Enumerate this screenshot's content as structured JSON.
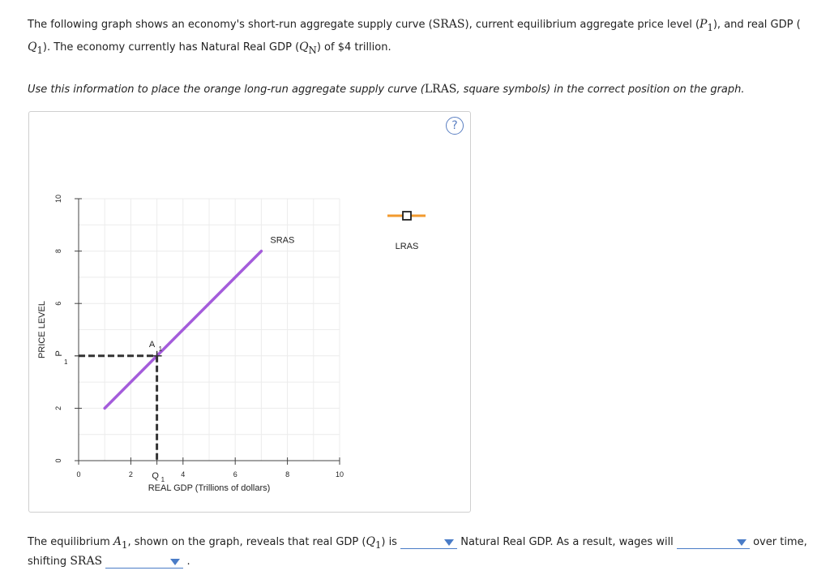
{
  "intro": {
    "t1": "The following graph shows an economy's short-run aggregate supply curve (",
    "sras": "SRAS",
    "t2": "), current equilibrium aggregate price level (",
    "p1": "P",
    "p1sub": "1",
    "t3": "), and real GDP (",
    "q1": "Q",
    "q1sub": "1",
    "t4": "). The economy currently has Natural Real GDP (",
    "qn": "Q",
    "qnsub": "N",
    "t5": ") of $4 trillion."
  },
  "instruction": {
    "t1": "Use this information to place the orange long-run aggregate supply curve (",
    "lras": "LRAS",
    "t2": ", square symbols) in the correct position on the graph."
  },
  "help_icon": "?",
  "chart_data": {
    "type": "line",
    "xlabel": "REAL GDP (Trillions of dollars)",
    "ylabel": "PRICE LEVEL",
    "xlim": [
      0,
      10
    ],
    "ylim": [
      0,
      10
    ],
    "x_ticks": [
      "0",
      "2",
      "4",
      "6",
      "8",
      "10"
    ],
    "y_ticks": [
      "0",
      "2",
      "6",
      "8",
      "10"
    ],
    "special_x_tick": {
      "main": "Q",
      "sub": "1",
      "value": 3
    },
    "special_y_tick": {
      "main": "P",
      "sub": "1",
      "value": 4
    },
    "series": [
      {
        "name": "SRAS",
        "x": [
          1,
          7
        ],
        "y": [
          2,
          8
        ],
        "color": "#a45cdb"
      }
    ],
    "point": {
      "label_main": "A",
      "label_sub": "1",
      "x": 3,
      "y": 4
    },
    "palette": {
      "label": "LRAS",
      "color": "#f29a2e"
    }
  },
  "question": {
    "t1": "The equilibrium ",
    "a1": "A",
    "a1sub": "1",
    "t2": ", shown on the graph, reveals that real GDP (",
    "q1": "Q",
    "q1sub": "1",
    "t3": ") is",
    "t4": "Natural Real GDP. As a result, wages will",
    "t5": "over time,",
    "t6": "shifting ",
    "sras": "SRAS",
    "t7": "."
  }
}
